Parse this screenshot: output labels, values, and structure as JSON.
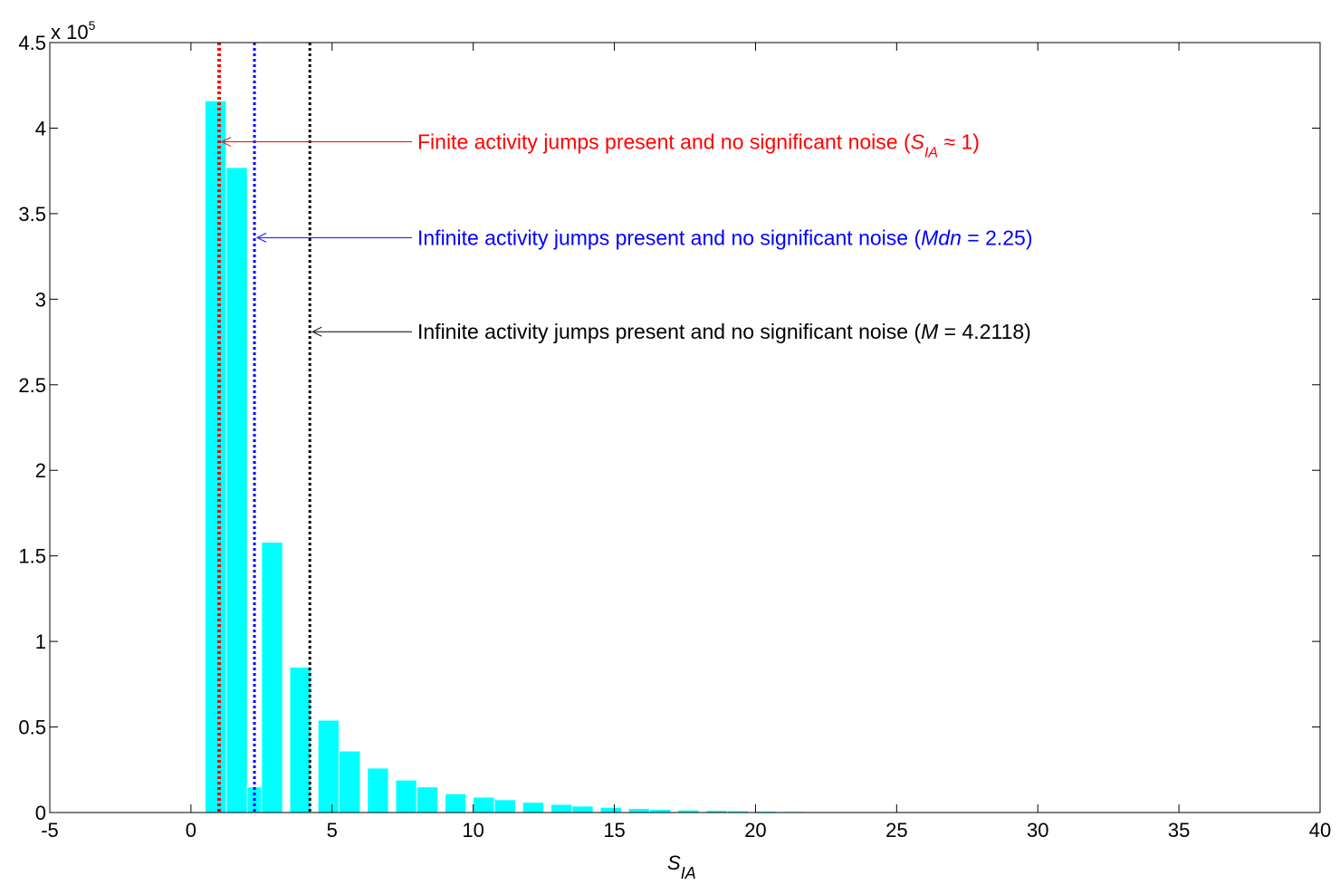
{
  "chart_data": {
    "type": "bar",
    "title": "",
    "ylabel": "",
    "xlabel": {
      "main": "S",
      "sub": "IA"
    },
    "xlim": [
      -5,
      40
    ],
    "ylim": [
      0,
      450000
    ],
    "y_exponent_label": {
      "base": "x 10",
      "exp": "5"
    },
    "x_ticks": [
      -5,
      0,
      5,
      10,
      15,
      20,
      25,
      30,
      35,
      40
    ],
    "x_tick_labels": [
      "-5",
      "0",
      "5",
      "10",
      "15",
      "20",
      "25",
      "30",
      "35",
      "40"
    ],
    "y_ticks": [
      0,
      50000,
      100000,
      150000,
      200000,
      250000,
      300000,
      350000,
      400000,
      450000
    ],
    "y_tick_labels": [
      "0",
      "0.5",
      "1",
      "1.5",
      "2",
      "2.5",
      "3",
      "3.5",
      "4",
      "4.5"
    ],
    "bin_width": 0.75,
    "bins": [
      {
        "x0": 0.5,
        "value": 416000
      },
      {
        "x0": 1.25,
        "value": 377000
      },
      {
        "x0": 2.0,
        "value": 15000
      },
      {
        "x0": 2.5,
        "value": 158000
      },
      {
        "x0": 3.5,
        "value": 85000
      },
      {
        "x0": 4.5,
        "value": 54000
      },
      {
        "x0": 5.25,
        "value": 36000
      },
      {
        "x0": 6.25,
        "value": 26000
      },
      {
        "x0": 7.25,
        "value": 19000
      },
      {
        "x0": 8.0,
        "value": 15000
      },
      {
        "x0": 9.0,
        "value": 11000
      },
      {
        "x0": 10.0,
        "value": 9000
      },
      {
        "x0": 10.75,
        "value": 7500
      },
      {
        "x0": 11.75,
        "value": 6000
      },
      {
        "x0": 12.75,
        "value": 4800
      },
      {
        "x0": 13.5,
        "value": 3800
      },
      {
        "x0": 14.5,
        "value": 3000
      },
      {
        "x0": 15.5,
        "value": 2400
      },
      {
        "x0": 16.25,
        "value": 1900
      },
      {
        "x0": 17.25,
        "value": 1500
      },
      {
        "x0": 18.25,
        "value": 1200
      },
      {
        "x0": 19.0,
        "value": 1000
      },
      {
        "x0": 20.0,
        "value": 800
      },
      {
        "x0": 21.0,
        "value": 650
      },
      {
        "x0": 21.75,
        "value": 500
      },
      {
        "x0": 22.75,
        "value": 400
      },
      {
        "x0": 23.75,
        "value": 300
      },
      {
        "x0": 24.5,
        "value": 250
      },
      {
        "x0": 25.5,
        "value": 200
      },
      {
        "x0": 26.5,
        "value": 160
      },
      {
        "x0": 27.25,
        "value": 130
      },
      {
        "x0": 28.25,
        "value": 100
      },
      {
        "x0": 29.25,
        "value": 80
      },
      {
        "x0": 30.0,
        "value": 60
      },
      {
        "x0": 31.0,
        "value": 50
      },
      {
        "x0": 32.0,
        "value": 40
      },
      {
        "x0": 32.75,
        "value": 30
      },
      {
        "x0": 33.75,
        "value": 25
      },
      {
        "x0": 34.75,
        "value": 20
      },
      {
        "x0": 35.5,
        "value": 15
      },
      {
        "x0": 36.5,
        "value": 10
      }
    ],
    "bar_color": "#00ffff",
    "reference_lines": [
      {
        "x": 1.0,
        "color": "#ff0000",
        "arrow_value": 392000,
        "label_prefix": "Finite activity jumps present and no significant noise (",
        "sym": "S",
        "sub": "IA",
        "rel": " ≈ 1)"
      },
      {
        "x": 2.25,
        "color": "#0000ff",
        "arrow_value": 336000,
        "label_prefix": "Infinite activity jumps present and no significant noise (",
        "sym": "Mdn",
        "sub": "",
        "rel": " = 2.25)"
      },
      {
        "x": 4.2118,
        "color": "#000000",
        "arrow_value": 281000,
        "label_prefix": "Infinite activity jumps present and no significant noise (",
        "sym": "M",
        "sub": "",
        "rel": " = 4.2118)"
      }
    ]
  }
}
